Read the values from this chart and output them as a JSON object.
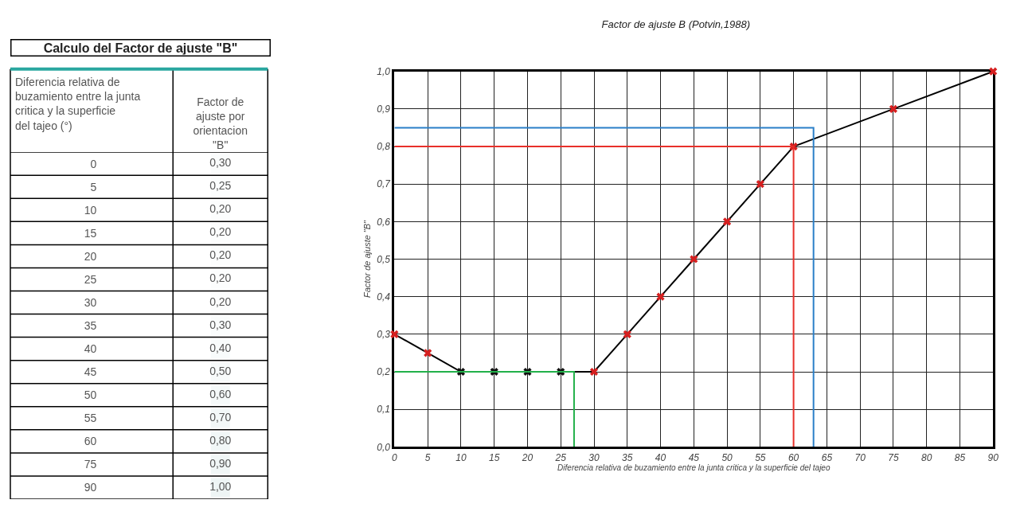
{
  "chart_data": [
    {
      "type": "heatmap",
      "title": "Calculo del Factor de ajuste \"B\"",
      "ylabel": "Diferencia relativa de buzamiento entre la junta critica y la superficie del tajeo (°)",
      "categories": [
        "Factor de ajuste por orientacion \"B\""
      ],
      "y_categories": [
        "0",
        "5",
        "10",
        "15",
        "20",
        "25",
        "30",
        "35",
        "40",
        "45",
        "50",
        "55",
        "60",
        "75",
        "90"
      ],
      "cells": [
        [
          0.3
        ],
        [
          0.25
        ],
        [
          0.2
        ],
        [
          0.2
        ],
        [
          0.2
        ],
        [
          0.2
        ],
        [
          0.2
        ],
        [
          0.3
        ],
        [
          0.4
        ],
        [
          0.5
        ],
        [
          0.6
        ],
        [
          0.7
        ],
        [
          0.8
        ],
        [
          0.9
        ],
        [
          1.0
        ]
      ],
      "cell_labels": [
        [
          "0,30"
        ],
        [
          "0,25"
        ],
        [
          "0,20"
        ],
        [
          "0,20"
        ],
        [
          "0,20"
        ],
        [
          "0,20"
        ],
        [
          "0,20"
        ],
        [
          "0,30"
        ],
        [
          "0,40"
        ],
        [
          "0,50"
        ],
        [
          "0,60"
        ],
        [
          "0,70"
        ],
        [
          "0,80"
        ],
        [
          "0,90"
        ],
        [
          "1,00"
        ]
      ]
    },
    {
      "type": "line",
      "title": "Factor de ajuste B (Potvin,1988)",
      "xlabel": "Diferencia relativa de buzamiento entre la junta critica y la superficie del tajeo",
      "ylabel": "Factor de ajuste \"B\"",
      "series": [
        {
          "color": "#000000",
          "marker": "cross",
          "x": [
            0,
            5,
            10,
            15,
            20,
            25,
            30,
            35,
            40,
            45,
            50,
            55,
            60,
            75,
            90
          ],
          "values": [
            0.3,
            0.25,
            0.2,
            0.2,
            0.2,
            0.2,
            0.2,
            0.3,
            0.4,
            0.5,
            0.6,
            0.7,
            0.8,
            0.9,
            1.0
          ],
          "colors": [
            "#d62020",
            "#d62020",
            "#111111",
            "#111111",
            "#111111",
            "#111111",
            "#d62020",
            "#d62020",
            "#d62020",
            "#d62020",
            "#d62020",
            "#d62020",
            "#d62020",
            "#d62020",
            "#d62020"
          ]
        },
        {
          "color": "#22b04a",
          "marker": "none",
          "x": [
            0,
            27,
            27
          ],
          "values": [
            0.2,
            0.2,
            0
          ]
        },
        {
          "color": "#e8302a",
          "marker": "none",
          "x": [
            0,
            60,
            60
          ],
          "values": [
            0.8,
            0.8,
            0
          ]
        },
        {
          "color": "#2a7fc8",
          "marker": "none",
          "x": [
            0,
            63,
            63
          ],
          "values": [
            0.85,
            0.85,
            0
          ]
        }
      ],
      "xlim": [
        0,
        90
      ],
      "xticks": [
        0,
        5,
        10,
        15,
        20,
        25,
        30,
        35,
        40,
        45,
        50,
        55,
        60,
        65,
        70,
        75,
        80,
        85,
        90
      ],
      "ylim": [
        0,
        1
      ],
      "yticks": [
        {
          "value": 0,
          "label": "0,0"
        },
        {
          "value": 0.1,
          "label": "0,1"
        },
        {
          "value": 0.2,
          "label": "0,2"
        },
        {
          "value": 0.3,
          "label": "0,3"
        },
        {
          "value": 0.4,
          "label": "0,4"
        },
        {
          "value": 0.5,
          "label": "0,5"
        },
        {
          "value": 0.6,
          "label": "0,6"
        },
        {
          "value": 0.7,
          "label": "0,7"
        },
        {
          "value": 0.8,
          "label": "0,8"
        },
        {
          "value": 0.9,
          "label": "0,9"
        },
        {
          "value": 1,
          "label": "1,0"
        }
      ],
      "grid": true,
      "line_style": "solid"
    }
  ]
}
